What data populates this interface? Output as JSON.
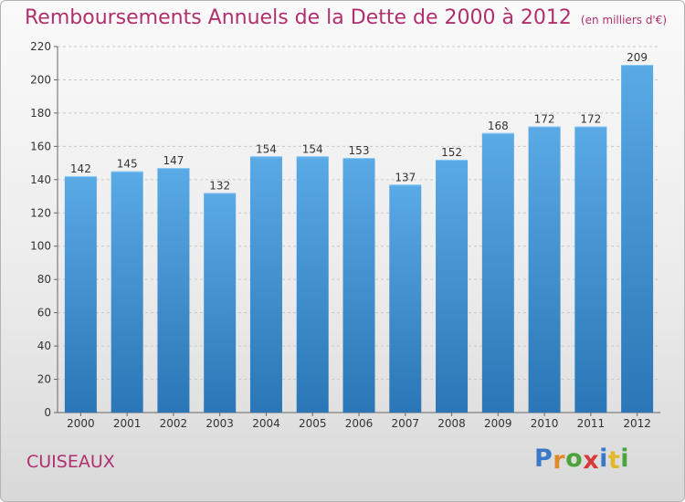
{
  "header": {
    "title": "Remboursements Annuels de la Dette de 2000 à 2012",
    "subtitle": "(en milliers d'€)"
  },
  "footer": {
    "commune": "CUISEAUX",
    "logo": [
      "P",
      "r",
      "o",
      "x",
      "i",
      "t",
      "i"
    ],
    "logo_colors": [
      "#3a78c9",
      "#e28a2a",
      "#4aa33b",
      "#d83a3a",
      "#3a78c9",
      "#e2b92a",
      "#4aa33b"
    ]
  },
  "chart_data": {
    "type": "bar",
    "title": "Remboursements Annuels de la Dette de 2000 à 2012",
    "subtitle": "(en milliers d'€)",
    "xlabel": "",
    "ylabel": "",
    "categories": [
      "2000",
      "2001",
      "2002",
      "2003",
      "2004",
      "2005",
      "2006",
      "2007",
      "2008",
      "2009",
      "2010",
      "2011",
      "2012"
    ],
    "values": [
      142,
      145,
      147,
      132,
      154,
      154,
      153,
      137,
      152,
      168,
      172,
      172,
      209
    ],
    "ylim": [
      0,
      220
    ],
    "yticks": [
      0,
      20,
      40,
      60,
      80,
      100,
      120,
      140,
      160,
      180,
      200,
      220
    ],
    "grid": true,
    "colors": {
      "bar_top": "#5aaae6",
      "bar_bottom": "#2a76b6",
      "grid": "#c8c8c8",
      "accent": "#b0306e"
    }
  }
}
